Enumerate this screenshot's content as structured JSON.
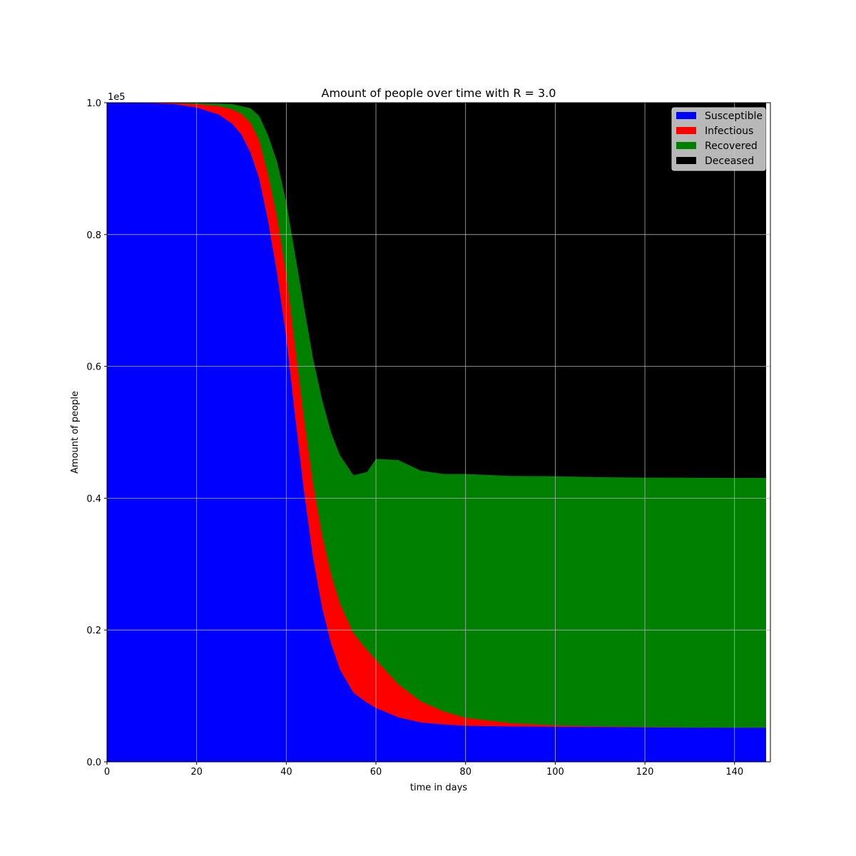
{
  "chart_data": {
    "type": "area",
    "stacked": true,
    "title": "Amount of people over time with R = 3.0",
    "xlabel": "time in days",
    "ylabel": "Amount of people",
    "offset_label": "1e5",
    "xlim": [
      0,
      148
    ],
    "ylim": [
      0,
      1.0
    ],
    "x_end": 147,
    "xticks": [
      0,
      20,
      40,
      60,
      80,
      100,
      120,
      140
    ],
    "xtick_labels": [
      "0",
      "20",
      "40",
      "60",
      "80",
      "100",
      "120",
      "140"
    ],
    "yticks": [
      0,
      0.2,
      0.4,
      0.6,
      0.8,
      1.0
    ],
    "ytick_labels": [
      "0.0",
      "0.2",
      "0.4",
      "0.6",
      "0.8",
      "1.0"
    ],
    "grid": true,
    "legend_position": "top-right",
    "x": [
      0,
      10,
      15,
      20,
      25,
      28,
      30,
      32,
      34,
      36,
      38,
      40,
      42,
      44,
      46,
      48,
      50,
      52,
      55,
      58,
      60,
      65,
      70,
      75,
      80,
      90,
      100,
      110,
      120,
      130,
      140,
      147
    ],
    "series": [
      {
        "name": "Susceptible",
        "color": "#0000ff",
        "values": [
          1.0,
          0.9995,
          0.998,
          0.993,
          0.982,
          0.968,
          0.952,
          0.925,
          0.885,
          0.82,
          0.74,
          0.645,
          0.525,
          0.41,
          0.31,
          0.235,
          0.18,
          0.14,
          0.105,
          0.09,
          0.082,
          0.068,
          0.06,
          0.057,
          0.055,
          0.054,
          0.0535,
          0.053,
          0.0525,
          0.052,
          0.052,
          0.052
        ]
      },
      {
        "name": "Infectious",
        "color": "#ff0000",
        "values": [
          0.0,
          0.0004,
          0.0015,
          0.005,
          0.013,
          0.022,
          0.031,
          0.045,
          0.058,
          0.07,
          0.085,
          0.095,
          0.105,
          0.11,
          0.112,
          0.11,
          0.105,
          0.1,
          0.09,
          0.08,
          0.073,
          0.05,
          0.032,
          0.02,
          0.012,
          0.005,
          0.002,
          0.001,
          0.0005,
          0.0003,
          0.0001,
          0.0001
        ]
      },
      {
        "name": "Recovered",
        "color": "#008000",
        "values": [
          0.0,
          0.0001,
          0.0005,
          0.0018,
          0.004,
          0.008,
          0.012,
          0.022,
          0.037,
          0.06,
          0.085,
          0.11,
          0.14,
          0.17,
          0.19,
          0.205,
          0.215,
          0.225,
          0.24,
          0.27,
          0.305,
          0.34,
          0.35,
          0.36,
          0.37,
          0.375,
          0.378,
          0.378,
          0.3785,
          0.379,
          0.379,
          0.379
        ]
      },
      {
        "name": "Deceased",
        "color": "#000000",
        "values": [
          0.0,
          0.0,
          0.0,
          0.0002,
          0.001,
          0.002,
          0.005,
          0.008,
          0.02,
          0.05,
          0.09,
          0.15,
          0.23,
          0.31,
          0.388,
          0.45,
          0.5,
          0.535,
          0.565,
          0.56,
          0.54,
          0.542,
          0.558,
          0.563,
          0.563,
          0.566,
          0.5665,
          0.568,
          0.5685,
          0.5687,
          0.5689,
          0.5689
        ]
      }
    ]
  }
}
